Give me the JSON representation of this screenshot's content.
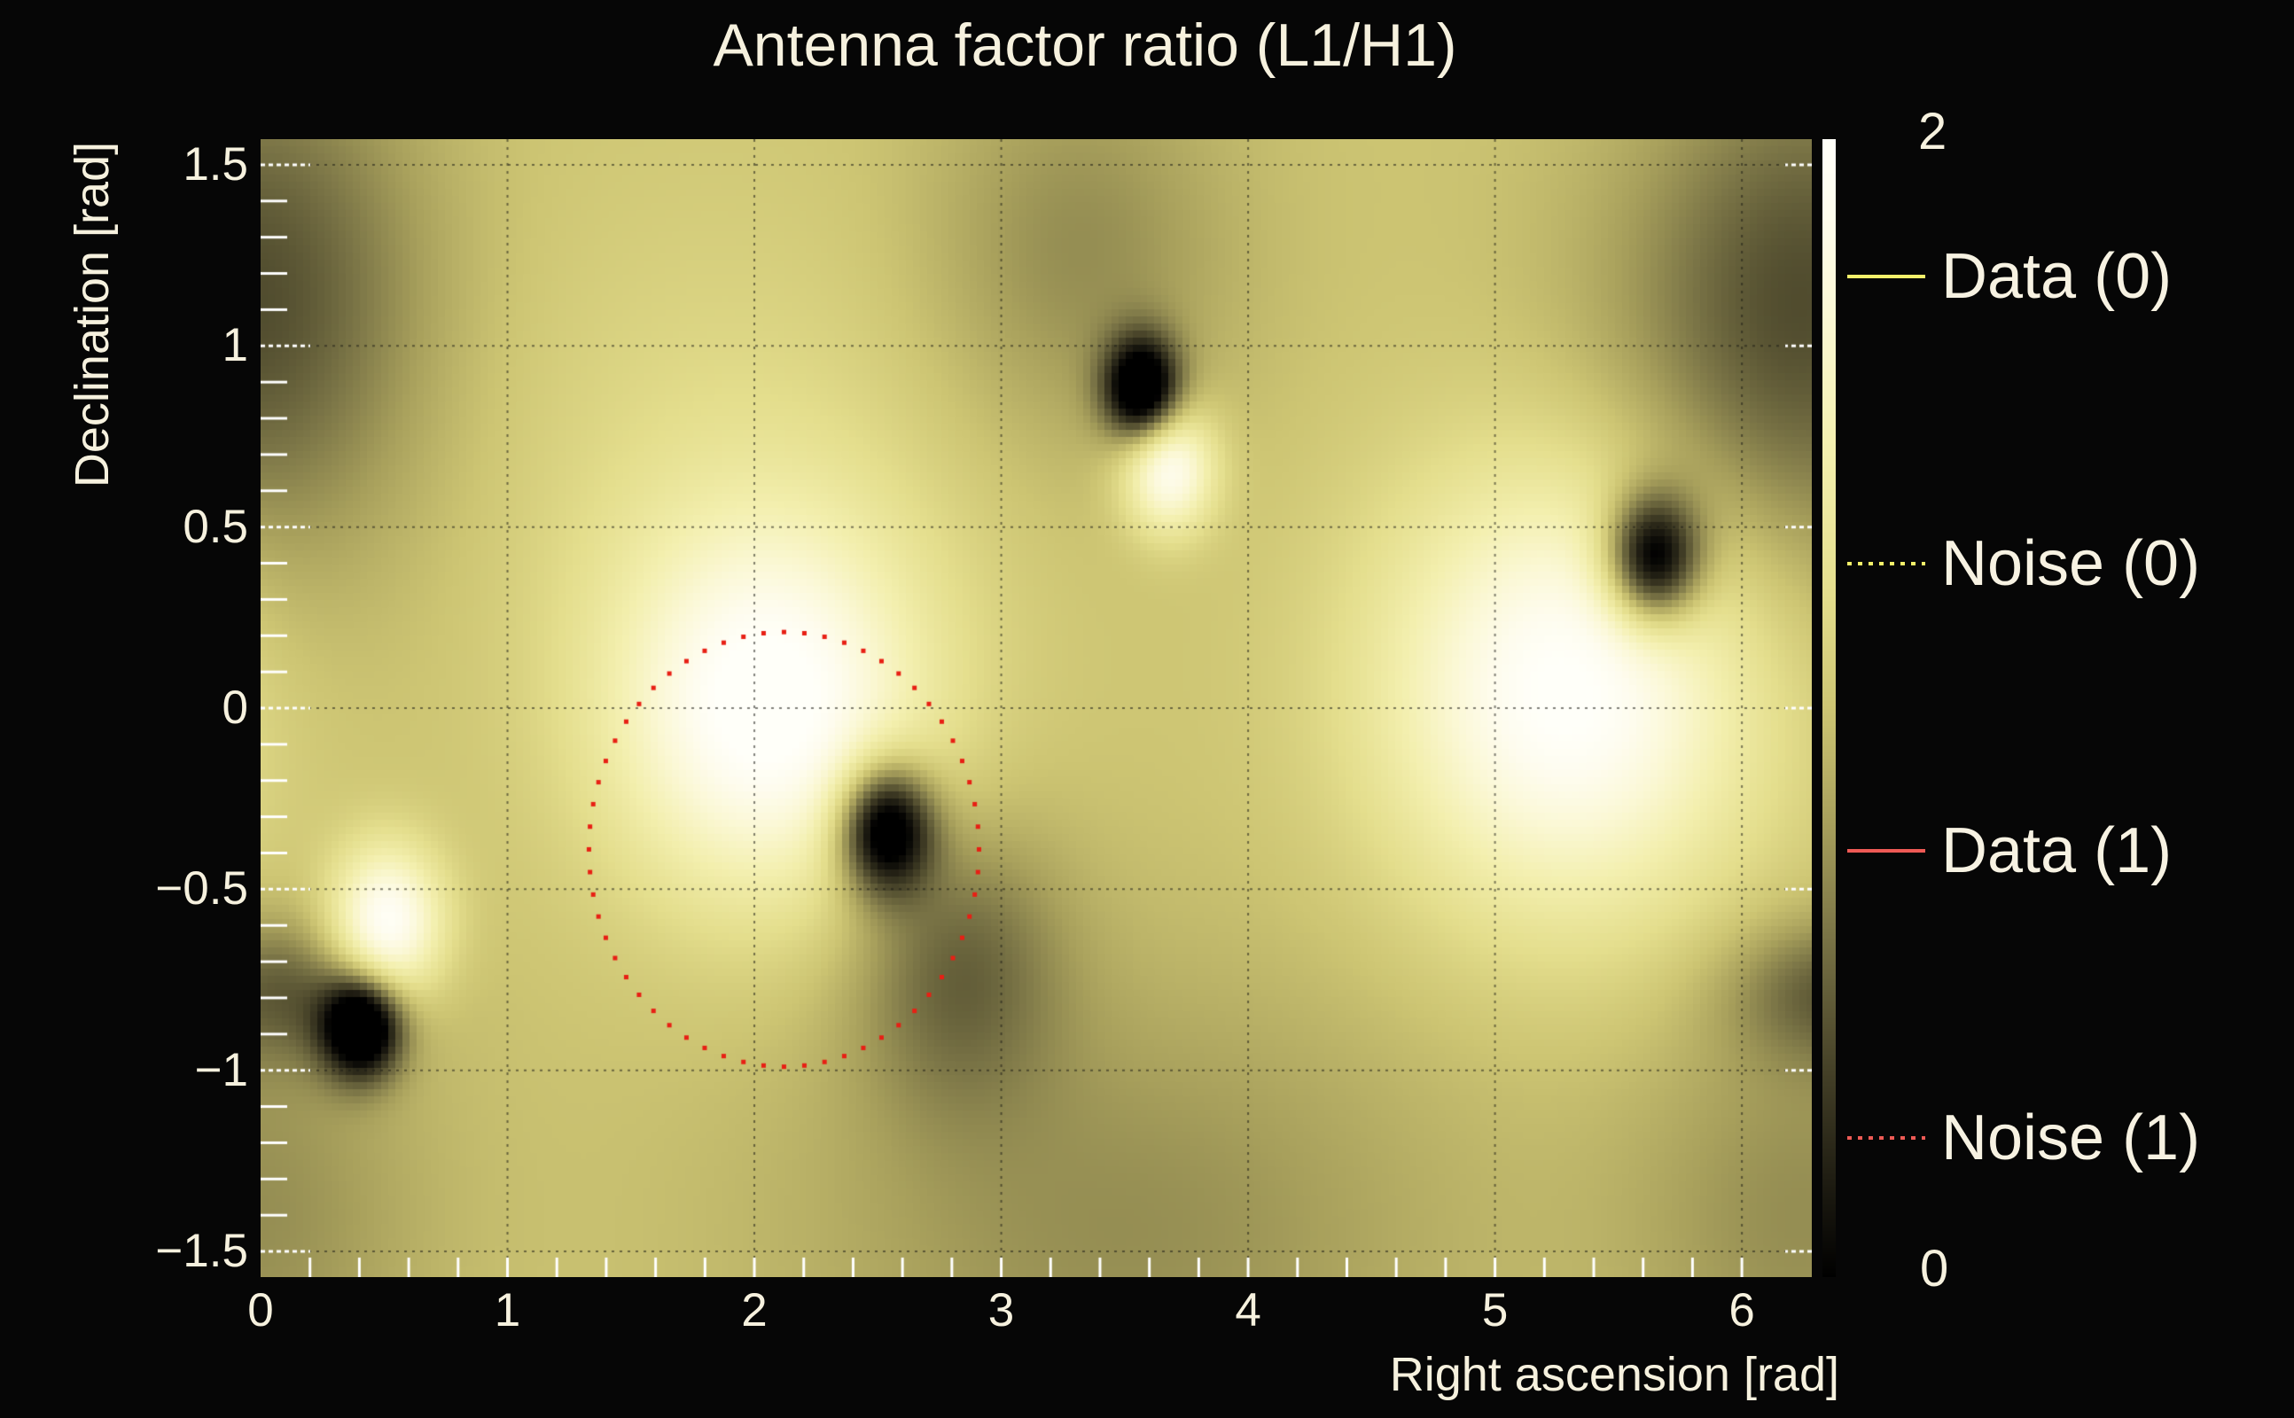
{
  "title": "Antenna factor ratio (L1/H1)",
  "axes": {
    "x": {
      "label": "Right ascension [rad]",
      "ticks": [
        "0",
        "1",
        "2",
        "3",
        "4",
        "5",
        "6"
      ],
      "tick_values": [
        0,
        1,
        2,
        3,
        4,
        5,
        6
      ],
      "minor_step": 0.2
    },
    "y": {
      "label": "Declination [rad]",
      "ticks": [
        "1.5",
        "1",
        "0.5",
        "0",
        "−0.5",
        "−1",
        "−1.5"
      ],
      "tick_values": [
        1.5,
        1,
        0.5,
        0,
        -0.5,
        -1,
        -1.5
      ],
      "minor_step": 0.1
    }
  },
  "colorbar": {
    "top_label": "2",
    "bottom_label": "0",
    "range": [
      0,
      2
    ]
  },
  "legend": [
    {
      "label": "Data (0)",
      "color": "#f4f06a",
      "style": "solid"
    },
    {
      "label": "Noise (0)",
      "color": "#f4f06a",
      "style": "dotted"
    },
    {
      "label": "Data (1)",
      "color": "#ee5a55",
      "style": "solid"
    },
    {
      "label": "Noise (1)",
      "color": "#ee5a55",
      "style": "dotted"
    }
  ],
  "colors": {
    "background": "#060606",
    "text": "#f5f0dc",
    "grid": "rgba(25,25,20,0.55)",
    "tick": "#ffffff",
    "contour_dot": "#e81f14"
  },
  "chart_data": {
    "type": "heatmap",
    "title": "Antenna factor ratio (L1/H1)",
    "xlabel": "Right ascension [rad]",
    "ylabel": "Declination [rad]",
    "x_range": [
      0,
      6.2832
    ],
    "y_range": [
      -1.5708,
      1.5708
    ],
    "value_range": [
      0,
      2
    ],
    "background_value": 1.0,
    "grid": "dotted, at every labeled tick",
    "legend_position": "right, outside plot",
    "bright_maxima": [
      {
        "ra": 0.51,
        "dec": -0.6,
        "sx": 0.16,
        "sy": 0.15,
        "amp": 1.05
      },
      {
        "ra": 2.05,
        "dec": 0.0,
        "sx": 0.44,
        "sy": 0.36,
        "amp": 1.05
      },
      {
        "ra": 3.68,
        "dec": 0.66,
        "sx": 0.13,
        "sy": 0.12,
        "amp": 0.95
      },
      {
        "ra": 5.3,
        "dec": 0.05,
        "sx": 0.52,
        "sy": 0.42,
        "amp": 1.05
      },
      {
        "ra": 1.9,
        "dec": 0.7,
        "sx": 0.8,
        "sy": 0.5,
        "amp": 0.15
      }
    ],
    "dark_nulls": [
      {
        "ra": 0.41,
        "dec": -0.88,
        "sx": 0.11,
        "sy": 0.095,
        "amp": 1.35
      },
      {
        "ra": 0.1,
        "dec": -0.78,
        "sx": 0.3,
        "sy": 0.14,
        "amp": 0.45
      },
      {
        "ra": 2.53,
        "dec": -0.33,
        "sx": 0.135,
        "sy": 0.125,
        "amp": 1.4
      },
      {
        "ra": 2.82,
        "dec": -0.7,
        "sx": 0.3,
        "sy": 0.28,
        "amp": 0.45
      },
      {
        "ra": 3.57,
        "dec": 0.88,
        "sx": 0.105,
        "sy": 0.1,
        "amp": 1.35
      },
      {
        "ra": 3.3,
        "dec": 1.25,
        "sx": 0.45,
        "sy": 0.4,
        "amp": 0.3
      },
      {
        "ra": 5.64,
        "dec": 0.41,
        "sx": 0.135,
        "sy": 0.125,
        "amp": 1.4
      },
      {
        "ra": 6.15,
        "dec": 0.95,
        "sx": 0.55,
        "sy": 0.5,
        "amp": 0.4
      },
      {
        "ra": 0.05,
        "dec": 1.3,
        "sx": 0.45,
        "sy": 0.45,
        "amp": 0.25
      },
      {
        "ra": 3.5,
        "dec": -1.45,
        "sx": 0.95,
        "sy": 0.5,
        "amp": 0.28
      },
      {
        "ra": 6.25,
        "dec": -1.4,
        "sx": 0.5,
        "sy": 0.45,
        "amp": 0.28
      }
    ],
    "noise1_contour": {
      "shape": "dotted ellipse",
      "center_ra": 2.12,
      "center_dec": -0.39,
      "rx": 0.79,
      "ry": 0.6,
      "n_dots": 60,
      "dot_size": 5,
      "color": "#e81f14"
    },
    "colormap_stops": [
      [
        0.0,
        "#000000"
      ],
      [
        0.15,
        "#1b1910"
      ],
      [
        0.35,
        "#423e26"
      ],
      [
        0.6,
        "#7a7446"
      ],
      [
        0.8,
        "#a8a05c"
      ],
      [
        1.0,
        "#cdc573"
      ],
      [
        1.2,
        "#e4de8d"
      ],
      [
        1.45,
        "#f3efae"
      ],
      [
        1.7,
        "#fbf8d6"
      ],
      [
        1.88,
        "#fefcee"
      ],
      [
        2.0,
        "#fffff9"
      ]
    ]
  }
}
